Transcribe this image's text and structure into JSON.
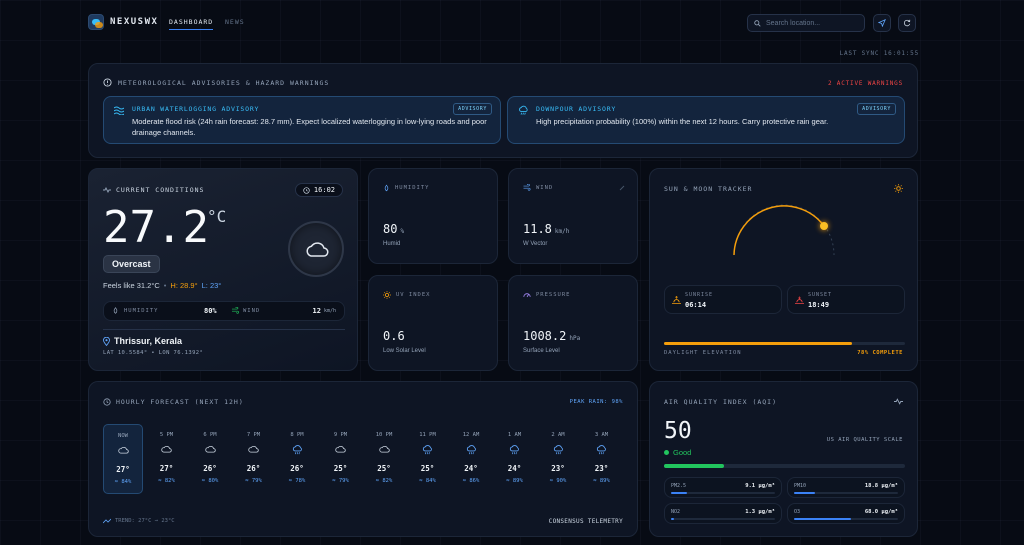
{
  "app": {
    "name": "NEXUSWX",
    "nav": [
      "DASHBOARD",
      "NEWS"
    ],
    "search_placeholder": "Search location...",
    "last_sync": "LAST SYNC 16:01:55"
  },
  "advisories": {
    "title": "METEOROLOGICAL ADVISORIES & HAZARD WARNINGS",
    "count": "2 ACTIVE WARNINGS",
    "items": [
      {
        "title": "URBAN WATERLOGGING ADVISORY",
        "badge": "ADVISORY",
        "text": "Moderate flood risk (24h rain forecast: 28.7 mm). Expect localized waterlogging in low-lying roads and poor drainage channels."
      },
      {
        "title": "DOWNPOUR ADVISORY",
        "badge": "ADVISORY",
        "text": "High precipitation probability (100%) within the next 12 hours. Carry protective rain gear."
      }
    ]
  },
  "current": {
    "title": "CURRENT CONDITIONS",
    "time": "16:02",
    "temp": "27.2",
    "unit": "°C",
    "condition": "Overcast",
    "feels": "Feels like 31.2°C",
    "sep": "•",
    "high": "H: 28.9°",
    "low": "L: 23°",
    "humidity_label": "HUMIDITY",
    "humidity": "80%",
    "wind_label": "WIND",
    "wind": "12",
    "wind_unit": "km/h",
    "location": "Thrissur, Kerala",
    "coords": "LAT 10.5584° • LON 76.1392°"
  },
  "metrics": [
    {
      "label": "HUMIDITY",
      "value": "80",
      "unit": "%",
      "sub": "Humid"
    },
    {
      "label": "WIND",
      "value": "11.8",
      "unit": "km/h",
      "sub": "W Vector"
    },
    {
      "label": "UV INDEX",
      "value": "0.6",
      "unit": "",
      "sub": "Low Solar Level"
    },
    {
      "label": "PRESSURE",
      "value": "1008.2",
      "unit": "hPa",
      "sub": "Surface Level"
    }
  ],
  "sun": {
    "title": "SUN & MOON TRACKER",
    "sunrise_label": "SUNRISE",
    "sunrise": "06:14",
    "sunset_label": "SUNSET",
    "sunset": "18:49",
    "elevation_label": "DAYLIGHT ELEVATION",
    "elevation": "78% COMPLETE",
    "progress": 0.78
  },
  "hourly": {
    "title": "HOURLY FORECAST (NEXT 12H)",
    "peak": "PEAK RAIN: 98%",
    "trend": "TREND: 27°C → 23°C",
    "footer": "CONSENSUS TELEMETRY",
    "hours": [
      {
        "t": "NOW",
        "temp": "27°",
        "hum": "84%",
        "icon": "cloud"
      },
      {
        "t": "5 PM",
        "temp": "27°",
        "hum": "82%",
        "icon": "cloud"
      },
      {
        "t": "6 PM",
        "temp": "26°",
        "hum": "80%",
        "icon": "cloud"
      },
      {
        "t": "7 PM",
        "temp": "26°",
        "hum": "79%",
        "icon": "cloud"
      },
      {
        "t": "8 PM",
        "temp": "26°",
        "hum": "78%",
        "icon": "rain"
      },
      {
        "t": "9 PM",
        "temp": "25°",
        "hum": "79%",
        "icon": "cloud"
      },
      {
        "t": "10 PM",
        "temp": "25°",
        "hum": "82%",
        "icon": "cloud"
      },
      {
        "t": "11 PM",
        "temp": "25°",
        "hum": "84%",
        "icon": "rain"
      },
      {
        "t": "12 AM",
        "temp": "24°",
        "hum": "86%",
        "icon": "rain"
      },
      {
        "t": "1 AM",
        "temp": "24°",
        "hum": "89%",
        "icon": "rain"
      },
      {
        "t": "2 AM",
        "temp": "23°",
        "hum": "90%",
        "icon": "rain"
      },
      {
        "t": "3 AM",
        "temp": "23°",
        "hum": "89%",
        "icon": "rain"
      }
    ]
  },
  "aqi": {
    "title": "AIR QUALITY INDEX (AQI)",
    "value": "50",
    "status": "Good",
    "scale": "US AIR QUALITY SCALE",
    "level": 0.25,
    "pollutants": [
      {
        "name": "PM2.5",
        "value": "9.1 μg/m³",
        "level": 0.15
      },
      {
        "name": "PM10",
        "value": "18.8 μg/m³",
        "level": 0.2
      },
      {
        "name": "NO2",
        "value": "1.3 μg/m³",
        "level": 0.03
      },
      {
        "name": "O3",
        "value": "68.0 μg/m³",
        "level": 0.55
      }
    ]
  },
  "colors": {
    "accent": "#3b82f6",
    "warn": "#f59e0b",
    "good": "#22c55e",
    "alert": "#ef4444"
  }
}
